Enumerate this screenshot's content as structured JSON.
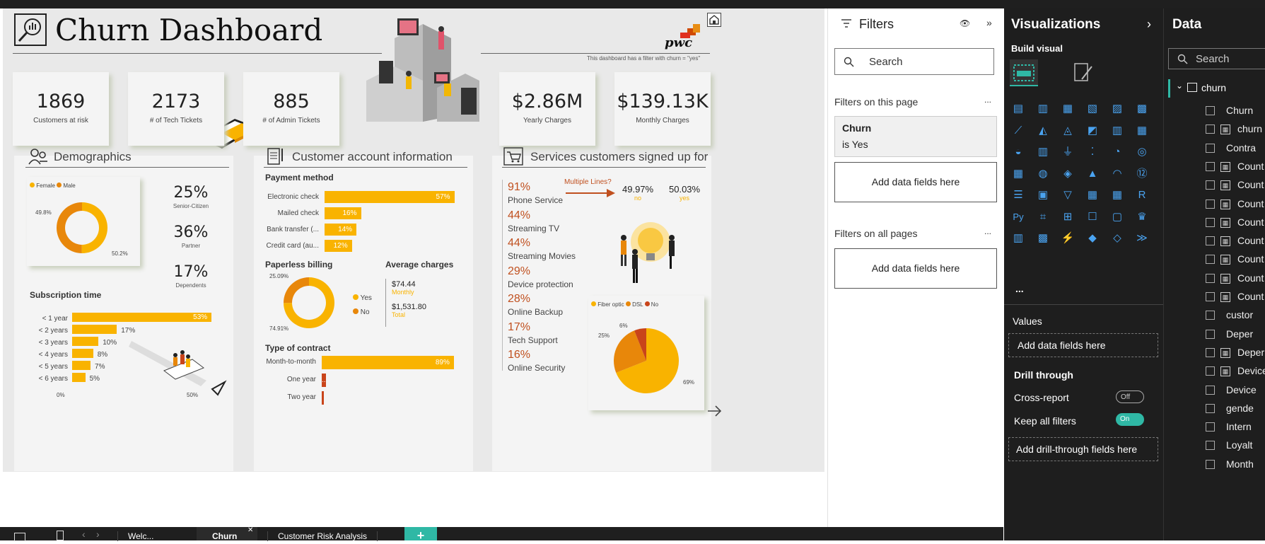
{
  "dashboard": {
    "title": "Churn Dashboard",
    "brand": "pwc",
    "filter_note": "This dashboard has a filter with churn = \"yes\""
  },
  "kpis": [
    {
      "value": "1869",
      "label": "Customers at risk"
    },
    {
      "value": "2173",
      "label": "# of Tech Tickets"
    },
    {
      "value": "885",
      "label": "# of Admin Tickets"
    },
    {
      "value": "$2.86M",
      "label": "Yearly Charges"
    },
    {
      "value": "$139.13K",
      "label": "Monthly Charges"
    }
  ],
  "demographics": {
    "title": "Demographics",
    "legend": [
      "Female",
      "Male"
    ],
    "gender_donut": {
      "female_pct": 49.8,
      "male_pct": 50.2,
      "labels": [
        "49.8%",
        "50.2%"
      ]
    },
    "stats": [
      {
        "value": "25%",
        "label": "Senior-Citizen"
      },
      {
        "value": "36%",
        "label": "Partner"
      },
      {
        "value": "17%",
        "label": "Dependents"
      }
    ],
    "subscription_title": "Subscription time",
    "subscription": [
      {
        "label": "< 1 year",
        "value": 53,
        "text": "53%"
      },
      {
        "label": "< 2 years",
        "value": 17,
        "text": "17%"
      },
      {
        "label": "< 3 years",
        "value": 10,
        "text": "10%"
      },
      {
        "label": "< 4 years",
        "value": 8,
        "text": "8%"
      },
      {
        "label": "< 5 years",
        "value": 7,
        "text": "7%"
      },
      {
        "label": "< 6 years",
        "value": 5,
        "text": "5%"
      }
    ],
    "axis": [
      "0%",
      "50%"
    ]
  },
  "account": {
    "title": "Customer account information",
    "payment_title": "Payment method",
    "payment": [
      {
        "label": "Electronic check",
        "value": 57,
        "text": "57%"
      },
      {
        "label": "Mailed check",
        "value": 16,
        "text": "16%"
      },
      {
        "label": "Bank transfer (...",
        "value": 14,
        "text": "14%"
      },
      {
        "label": "Credit card (au...",
        "value": 12,
        "text": "12%"
      }
    ],
    "paperless_title": "Paperless billing",
    "paperless": {
      "yes_pct": 74.91,
      "no_pct": 25.09,
      "labels": [
        "25.09%",
        "74.91%"
      ],
      "legend": [
        "Yes",
        "No"
      ]
    },
    "avg_title": "Average charges",
    "avg": [
      {
        "value": "$74.44",
        "label": "Monthly"
      },
      {
        "value": "$1,531.80",
        "label": "Total"
      }
    ],
    "contract_title": "Type of contract",
    "contract": [
      {
        "label": "Month-to-month",
        "value": 89,
        "text": "89%"
      },
      {
        "label": "One year",
        "value": 3,
        "text": "..."
      },
      {
        "label": "Two year",
        "value": 1,
        "text": ""
      }
    ]
  },
  "services": {
    "title": "Services customers signed up for",
    "list": [
      {
        "pct": "91%",
        "name": "Phone Service"
      },
      {
        "pct": "44%",
        "name": "Streaming TV"
      },
      {
        "pct": "44%",
        "name": "Streaming Movies"
      },
      {
        "pct": "29%",
        "name": "Device protection"
      },
      {
        "pct": "28%",
        "name": "Online Backup"
      },
      {
        "pct": "17%",
        "name": "Tech Support"
      },
      {
        "pct": "16%",
        "name": "Online Security"
      }
    ],
    "multiple_lines": {
      "title": "Multiple Lines?",
      "no_value": "49.97%",
      "no_label": "no",
      "yes_value": "50.03%",
      "yes_label": "yes"
    },
    "internet_pie": {
      "legend": [
        "Fiber optic",
        "DSL",
        "No"
      ],
      "values": [
        69,
        25,
        6
      ],
      "labels": [
        "69%",
        "25%",
        "6%"
      ],
      "colors": [
        "#f9b300",
        "#e8870a",
        "#c9441a"
      ]
    }
  },
  "filters": {
    "title": "Filters",
    "search": "Search",
    "on_page": "Filters on this page",
    "filter_name": "Churn",
    "filter_value": "is Yes",
    "add_fields": "Add data fields here",
    "on_all": "Filters on all pages",
    "more": "..."
  },
  "viz": {
    "title": "Visualizations",
    "build": "Build visual",
    "values": "Values",
    "add_fields": "Add data fields here",
    "drill": "Drill through",
    "cross": "Cross-report",
    "cross_state": "Off",
    "keep": "Keep all filters",
    "keep_state": "On",
    "add_drill": "Add drill-through fields here",
    "more": "..."
  },
  "data": {
    "title": "Data",
    "search": "Search",
    "table": "churn",
    "fields": [
      "Churn",
      "churn",
      "Contra",
      "Count",
      "Count",
      "Count",
      "Count",
      "Count",
      "Count",
      "Count",
      "Count",
      "custor",
      "Deper",
      "Deper",
      "Device",
      "Device",
      "gende",
      "Intern",
      "Loyalt",
      "Month"
    ]
  },
  "bottom": {
    "tabs": [
      "Welc...",
      "Churn",
      "Customer Risk Analysis"
    ],
    "add": "+"
  }
}
